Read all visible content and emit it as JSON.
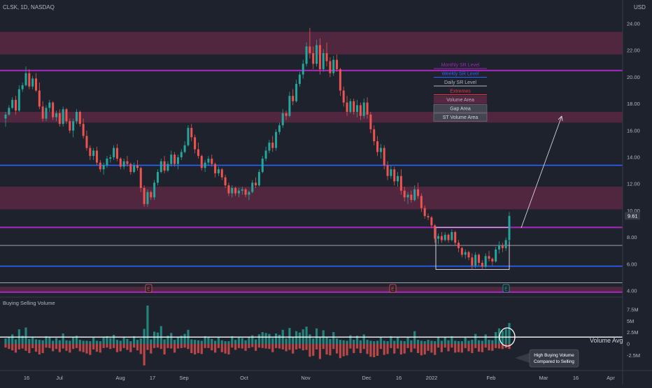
{
  "header": {
    "ticker_line": "CLSK, 1D, NASDAQ",
    "currency": "USD"
  },
  "price_pane": {
    "y_ticks": [
      "24.00",
      "22.00",
      "20.00",
      "18.00",
      "16.00",
      "14.00",
      "12.00",
      "10.00",
      "8.00",
      "6.00",
      "4.00"
    ],
    "last_price": "9.61"
  },
  "legend": {
    "items": [
      {
        "label": "Monthly SR Level",
        "color": "#9c27b0"
      },
      {
        "label": "Weekly SR Level",
        "color": "#2962ff"
      },
      {
        "label": "Daily SR Level",
        "color": "#b2b5be"
      },
      {
        "label": "Extremes",
        "color": "#f23645"
      },
      {
        "label": "Volume Area",
        "color": "#b2b5be"
      },
      {
        "label": "Gap Area",
        "color": "#d1d4dc"
      },
      {
        "label": "ST Volume Area",
        "color": "#d1d4dc"
      }
    ]
  },
  "earnings_markers": [
    "E",
    "E",
    "E"
  ],
  "volume_pane": {
    "title": "Buying Selling Volume",
    "y_ticks": [
      "7.5M",
      "5M",
      "2.5M",
      "0",
      "-2.5M"
    ],
    "avg_label": "Volume Avg",
    "callout": [
      "High Buying Volume",
      "Compared to Selling"
    ]
  },
  "x_axis": {
    "labels": [
      "16",
      "Jul",
      "Aug",
      "17",
      "Sep",
      "Oct",
      "Nov",
      "Dec",
      "16",
      "2022",
      "Feb",
      "Mar",
      "16",
      "Apr"
    ]
  },
  "colors": {
    "background": "#1e222d",
    "up": "#26a69a",
    "down": "#ef5350",
    "monthly": "#9c27b0",
    "weekly": "#2962ff",
    "daily": "#b2b5be",
    "zone": "#7b2c4f"
  },
  "chart_data": {
    "type": "candlestick",
    "symbol": "CLSK",
    "interval": "1D",
    "exchange": "NASDAQ",
    "y_range": [
      4,
      24.5
    ],
    "levels": {
      "monthly": [
        20.5,
        8.75,
        3.9
      ],
      "weekly": [
        13.4,
        5.85
      ],
      "daily": [
        7.4,
        4.6
      ]
    },
    "zones": [
      [
        21.7,
        23.4
      ],
      [
        16.6,
        17.4
      ],
      [
        10.1,
        11.8
      ],
      [
        3.95,
        4.3
      ]
    ],
    "st_volume_box": {
      "price": [
        5.6,
        8.75
      ]
    },
    "volume_avg": 1.5,
    "vol_range": [
      -2.9,
      8.8
    ],
    "candles": [
      [
        16.9,
        17.4,
        16.3,
        17.2
      ],
      [
        17.2,
        17.9,
        17.1,
        17.7
      ],
      [
        17.7,
        18.5,
        17.6,
        18.3
      ],
      [
        18.3,
        18.6,
        17.2,
        17.5
      ],
      [
        17.5,
        19.4,
        17.4,
        19.1
      ],
      [
        19.1,
        19.6,
        18.9,
        19.4
      ],
      [
        19.4,
        20.8,
        19.3,
        20.3
      ],
      [
        20.3,
        20.6,
        19.1,
        19.3
      ],
      [
        19.3,
        20.1,
        19.1,
        19.9
      ],
      [
        19.9,
        20.3,
        18.9,
        19.0
      ],
      [
        19.0,
        19.6,
        17.6,
        17.8
      ],
      [
        17.8,
        18.2,
        16.7,
        16.9
      ],
      [
        16.9,
        17.9,
        16.7,
        17.7
      ],
      [
        17.7,
        18.3,
        17.4,
        18.1
      ],
      [
        18.1,
        18.2,
        16.8,
        17.0
      ],
      [
        17.0,
        17.5,
        16.7,
        17.3
      ],
      [
        17.3,
        17.6,
        16.3,
        16.5
      ],
      [
        16.5,
        17.8,
        16.3,
        17.6
      ],
      [
        17.6,
        17.7,
        16.5,
        16.7
      ],
      [
        16.7,
        16.9,
        15.8,
        16.0
      ],
      [
        16.0,
        16.9,
        15.5,
        16.7
      ],
      [
        16.7,
        17.6,
        16.5,
        17.4
      ],
      [
        17.4,
        17.5,
        16.3,
        16.5
      ],
      [
        16.5,
        16.9,
        15.4,
        15.6
      ],
      [
        15.6,
        16.0,
        14.5,
        14.7
      ],
      [
        14.7,
        14.9,
        13.8,
        14.1
      ],
      [
        14.1,
        14.7,
        13.8,
        14.5
      ],
      [
        14.5,
        14.8,
        13.4,
        13.6
      ],
      [
        13.6,
        13.8,
        12.9,
        13.1
      ],
      [
        13.1,
        13.6,
        12.7,
        13.4
      ],
      [
        13.4,
        14.1,
        13.2,
        13.9
      ],
      [
        13.9,
        14.2,
        13.6,
        14.0
      ],
      [
        14.0,
        14.9,
        13.8,
        14.7
      ],
      [
        14.7,
        15.0,
        13.7,
        13.9
      ],
      [
        13.9,
        14.0,
        13.1,
        13.3
      ],
      [
        13.3,
        13.9,
        13.1,
        13.7
      ],
      [
        13.7,
        14.1,
        13.3,
        13.5
      ],
      [
        13.5,
        13.6,
        12.7,
        12.9
      ],
      [
        12.9,
        13.6,
        12.8,
        13.4
      ],
      [
        13.4,
        13.8,
        13.0,
        13.2
      ],
      [
        13.2,
        13.3,
        11.4,
        11.7
      ],
      [
        11.7,
        11.9,
        10.3,
        10.5
      ],
      [
        10.5,
        11.6,
        10.3,
        11.4
      ],
      [
        11.4,
        11.5,
        10.8,
        11.0
      ],
      [
        11.0,
        12.3,
        10.8,
        12.1
      ],
      [
        12.1,
        13.1,
        11.9,
        12.9
      ],
      [
        12.9,
        13.9,
        12.8,
        13.7
      ],
      [
        13.7,
        14.1,
        12.8,
        13.0
      ],
      [
        13.0,
        13.7,
        12.9,
        13.5
      ],
      [
        13.5,
        14.5,
        13.3,
        14.2
      ],
      [
        14.2,
        14.4,
        13.3,
        13.5
      ],
      [
        13.5,
        14.2,
        13.1,
        14.0
      ],
      [
        14.0,
        14.6,
        13.8,
        14.4
      ],
      [
        14.4,
        15.2,
        14.3,
        14.9
      ],
      [
        14.9,
        16.4,
        14.8,
        16.2
      ],
      [
        16.2,
        16.5,
        15.2,
        15.5
      ],
      [
        15.5,
        15.7,
        14.3,
        14.6
      ],
      [
        14.6,
        15.1,
        13.9,
        14.1
      ],
      [
        14.1,
        14.2,
        13.0,
        13.2
      ],
      [
        13.2,
        13.8,
        12.9,
        13.6
      ],
      [
        13.6,
        14.1,
        13.4,
        13.9
      ],
      [
        13.9,
        14.2,
        13.3,
        13.5
      ],
      [
        13.5,
        13.6,
        12.5,
        12.8
      ],
      [
        12.8,
        13.3,
        12.6,
        13.1
      ],
      [
        13.1,
        13.2,
        12.3,
        12.5
      ],
      [
        12.5,
        12.7,
        11.7,
        11.9
      ],
      [
        11.9,
        12.1,
        11.1,
        11.3
      ],
      [
        11.3,
        11.9,
        11.0,
        11.7
      ],
      [
        11.7,
        11.8,
        11.1,
        11.3
      ],
      [
        11.3,
        11.7,
        11.0,
        11.5
      ],
      [
        11.5,
        11.8,
        11.2,
        11.6
      ],
      [
        11.6,
        11.7,
        11.0,
        11.2
      ],
      [
        11.2,
        11.5,
        10.8,
        11.4
      ],
      [
        11.4,
        12.3,
        11.3,
        12.1
      ],
      [
        12.1,
        12.5,
        11.7,
        11.9
      ],
      [
        11.9,
        13.1,
        11.8,
        12.9
      ],
      [
        12.9,
        14.1,
        12.8,
        13.9
      ],
      [
        13.9,
        14.8,
        13.7,
        14.5
      ],
      [
        14.5,
        15.3,
        14.3,
        15.1
      ],
      [
        15.1,
        15.6,
        14.4,
        14.7
      ],
      [
        14.7,
        16.1,
        14.5,
        15.9
      ],
      [
        15.9,
        16.6,
        15.7,
        16.4
      ],
      [
        16.4,
        17.6,
        16.2,
        17.3
      ],
      [
        17.3,
        17.5,
        16.8,
        17.1
      ],
      [
        17.1,
        18.9,
        17.0,
        18.6
      ],
      [
        18.6,
        19.1,
        17.9,
        18.2
      ],
      [
        18.2,
        19.8,
        18.1,
        19.5
      ],
      [
        19.5,
        20.4,
        19.3,
        20.2
      ],
      [
        20.2,
        21.3,
        19.9,
        21.0
      ],
      [
        21.0,
        22.6,
        20.8,
        22.3
      ],
      [
        22.3,
        23.7,
        21.4,
        21.8
      ],
      [
        21.8,
        22.3,
        20.6,
        21.0
      ],
      [
        21.0,
        22.8,
        20.8,
        22.4
      ],
      [
        22.4,
        22.9,
        20.2,
        20.6
      ],
      [
        20.6,
        22.1,
        20.4,
        21.8
      ],
      [
        21.8,
        22.6,
        20.8,
        21.2
      ],
      [
        21.2,
        21.5,
        20.0,
        20.3
      ],
      [
        20.3,
        21.6,
        20.1,
        21.3
      ],
      [
        21.3,
        21.7,
        20.4,
        20.6
      ],
      [
        20.6,
        20.7,
        18.6,
        19.0
      ],
      [
        19.0,
        19.3,
        17.8,
        18.1
      ],
      [
        18.1,
        18.6,
        17.1,
        17.4
      ],
      [
        17.4,
        18.4,
        17.3,
        18.2
      ],
      [
        18.2,
        18.4,
        17.2,
        17.4
      ],
      [
        17.4,
        18.3,
        17.0,
        17.9
      ],
      [
        17.9,
        18.1,
        16.8,
        17.1
      ],
      [
        17.1,
        18.4,
        16.9,
        18.1
      ],
      [
        18.1,
        18.5,
        16.9,
        17.2
      ],
      [
        17.2,
        17.4,
        15.8,
        16.1
      ],
      [
        16.1,
        16.4,
        14.9,
        15.2
      ],
      [
        15.2,
        15.6,
        14.1,
        14.4
      ],
      [
        14.4,
        15.0,
        13.9,
        14.7
      ],
      [
        14.7,
        14.9,
        13.1,
        13.4
      ],
      [
        13.4,
        13.7,
        12.3,
        12.6
      ],
      [
        12.6,
        13.4,
        12.4,
        13.1
      ],
      [
        13.1,
        13.3,
        11.9,
        12.2
      ],
      [
        12.2,
        12.9,
        11.8,
        12.6
      ],
      [
        12.6,
        13.1,
        11.2,
        11.5
      ],
      [
        11.5,
        11.8,
        10.7,
        11.0
      ],
      [
        11.0,
        11.4,
        10.5,
        11.2
      ],
      [
        11.2,
        11.5,
        10.6,
        10.8
      ],
      [
        10.8,
        11.9,
        10.7,
        11.6
      ],
      [
        11.6,
        12.1,
        10.9,
        11.1
      ],
      [
        11.1,
        11.3,
        9.9,
        10.2
      ],
      [
        10.2,
        10.4,
        9.4,
        9.6
      ],
      [
        9.6,
        9.8,
        9.3,
        9.5
      ],
      [
        9.5,
        9.6,
        8.7,
        8.9
      ],
      [
        8.9,
        9.0,
        7.6,
        7.9
      ],
      [
        7.9,
        8.3,
        7.5,
        8.1
      ],
      [
        8.1,
        8.4,
        7.6,
        7.8
      ],
      [
        7.8,
        8.4,
        7.7,
        8.2
      ],
      [
        8.2,
        8.3,
        7.6,
        7.8
      ],
      [
        7.8,
        8.6,
        7.7,
        8.4
      ],
      [
        8.4,
        8.5,
        7.4,
        7.6
      ],
      [
        7.6,
        7.8,
        6.9,
        7.2
      ],
      [
        7.2,
        7.3,
        6.5,
        6.7
      ],
      [
        6.7,
        7.1,
        6.4,
        6.9
      ],
      [
        6.9,
        7.0,
        6.3,
        6.5
      ],
      [
        6.5,
        6.8,
        5.6,
        5.9
      ],
      [
        5.9,
        6.9,
        5.7,
        6.7
      ],
      [
        6.7,
        6.8,
        5.9,
        6.1
      ],
      [
        6.1,
        6.3,
        5.6,
        5.8
      ],
      [
        5.8,
        6.8,
        5.7,
        6.6
      ],
      [
        6.6,
        7.0,
        6.2,
        6.4
      ],
      [
        6.4,
        6.5,
        5.9,
        6.2
      ],
      [
        6.2,
        7.3,
        6.1,
        7.1
      ],
      [
        7.1,
        7.7,
        6.8,
        7.4
      ],
      [
        7.4,
        7.6,
        6.9,
        7.2
      ],
      [
        7.2,
        8.0,
        7.0,
        7.8
      ],
      [
        7.8,
        9.9,
        7.7,
        9.61
      ]
    ],
    "volumes": [
      [
        1.2,
        -0.8
      ],
      [
        1.6,
        -1.1
      ],
      [
        2.1,
        -1.4
      ],
      [
        1.0,
        -1.9
      ],
      [
        3.2,
        -1.2
      ],
      [
        1.8,
        -1.0
      ],
      [
        3.6,
        -1.5
      ],
      [
        1.1,
        -2.0
      ],
      [
        1.5,
        -0.9
      ],
      [
        1.0,
        -1.7
      ],
      [
        0.9,
        -2.3
      ],
      [
        0.8,
        -2.0
      ],
      [
        1.7,
        -0.8
      ],
      [
        1.5,
        -0.9
      ],
      [
        0.7,
        -1.6
      ],
      [
        1.3,
        -1.1
      ],
      [
        0.8,
        -1.8
      ],
      [
        2.3,
        -1.0
      ],
      [
        0.8,
        -1.5
      ],
      [
        0.7,
        -1.9
      ],
      [
        1.6,
        -1.1
      ],
      [
        1.8,
        -0.9
      ],
      [
        0.9,
        -1.6
      ],
      [
        0.7,
        -1.8
      ],
      [
        0.7,
        -2.1
      ],
      [
        0.6,
        -2.4
      ],
      [
        1.4,
        -1.2
      ],
      [
        0.7,
        -1.7
      ],
      [
        0.6,
        -1.9
      ],
      [
        1.5,
        -0.9
      ],
      [
        1.7,
        -0.8
      ],
      [
        1.3,
        -1.1
      ],
      [
        2.0,
        -0.9
      ],
      [
        0.9,
        -1.8
      ],
      [
        0.7,
        -1.6
      ],
      [
        1.6,
        -0.9
      ],
      [
        1.1,
        -1.3
      ],
      [
        0.6,
        -1.8
      ],
      [
        1.7,
        -0.8
      ],
      [
        0.9,
        -1.4
      ],
      [
        1.2,
        -2.2
      ],
      [
        3.3,
        -4.7
      ],
      [
        8.4,
        -1.3
      ],
      [
        1.0,
        -2.1
      ],
      [
        2.7,
        -0.9
      ],
      [
        2.5,
        -0.8
      ],
      [
        3.9,
        -1.1
      ],
      [
        1.0,
        -2.3
      ],
      [
        1.8,
        -0.9
      ],
      [
        2.4,
        -1.0
      ],
      [
        0.9,
        -1.9
      ],
      [
        1.6,
        -1.0
      ],
      [
        1.8,
        -0.9
      ],
      [
        2.2,
        -0.8
      ],
      [
        3.1,
        -1.1
      ],
      [
        1.0,
        -2.0
      ],
      [
        0.9,
        -2.3
      ],
      [
        0.8,
        -2.0
      ],
      [
        0.7,
        -2.2
      ],
      [
        1.7,
        -0.9
      ],
      [
        1.6,
        -0.9
      ],
      [
        1.1,
        -1.4
      ],
      [
        0.7,
        -1.9
      ],
      [
        1.5,
        -0.9
      ],
      [
        0.8,
        -1.8
      ],
      [
        0.6,
        -2.1
      ],
      [
        0.6,
        -2.3
      ],
      [
        1.7,
        -0.8
      ],
      [
        0.9,
        -1.3
      ],
      [
        1.4,
        -0.9
      ],
      [
        1.3,
        -1.0
      ],
      [
        0.8,
        -1.5
      ],
      [
        1.5,
        -0.9
      ],
      [
        1.9,
        -0.7
      ],
      [
        1.0,
        -1.5
      ],
      [
        2.1,
        -0.8
      ],
      [
        2.6,
        -0.9
      ],
      [
        2.4,
        -1.0
      ],
      [
        2.2,
        -1.1
      ],
      [
        1.3,
        -1.8
      ],
      [
        2.3,
        -0.9
      ],
      [
        2.0,
        -1.0
      ],
      [
        3.1,
        -1.2
      ],
      [
        1.2,
        -1.6
      ],
      [
        3.5,
        -1.3
      ],
      [
        1.4,
        -2.1
      ],
      [
        2.8,
        -1.2
      ],
      [
        2.5,
        -1.0
      ],
      [
        3.2,
        -1.4
      ],
      [
        3.8,
        -1.3
      ],
      [
        2.1,
        -2.8
      ],
      [
        1.2,
        -2.6
      ],
      [
        3.4,
        -1.2
      ],
      [
        1.4,
        -3.3
      ],
      [
        3.0,
        -1.1
      ],
      [
        1.5,
        -2.3
      ],
      [
        1.1,
        -2.5
      ],
      [
        2.6,
        -1.1
      ],
      [
        1.2,
        -2.1
      ],
      [
        0.9,
        -3.1
      ],
      [
        0.8,
        -2.7
      ],
      [
        0.7,
        -2.5
      ],
      [
        1.9,
        -1.0
      ],
      [
        0.9,
        -2.0
      ],
      [
        1.8,
        -1.0
      ],
      [
        0.8,
        -2.0
      ],
      [
        2.1,
        -1.1
      ],
      [
        0.9,
        -2.2
      ],
      [
        0.7,
        -2.8
      ],
      [
        0.6,
        -2.9
      ],
      [
        0.7,
        -2.6
      ],
      [
        1.6,
        -1.1
      ],
      [
        0.7,
        -2.4
      ],
      [
        0.6,
        -2.2
      ],
      [
        1.7,
        -0.9
      ],
      [
        0.7,
        -2.1
      ],
      [
        1.6,
        -1.0
      ],
      [
        0.7,
        -2.3
      ],
      [
        0.6,
        -2.1
      ],
      [
        1.5,
        -0.9
      ],
      [
        0.8,
        -1.8
      ],
      [
        2.8,
        -1.0
      ],
      [
        0.9,
        -2.0
      ],
      [
        0.7,
        -2.5
      ],
      [
        0.6,
        -2.3
      ],
      [
        0.9,
        -1.5
      ],
      [
        0.7,
        -1.9
      ],
      [
        0.6,
        -2.4
      ],
      [
        1.5,
        -0.8
      ],
      [
        0.7,
        -1.8
      ],
      [
        1.6,
        -0.8
      ],
      [
        0.8,
        -1.6
      ],
      [
        1.7,
        -0.8
      ],
      [
        0.7,
        -1.9
      ],
      [
        0.6,
        -1.8
      ],
      [
        0.6,
        -1.9
      ],
      [
        1.4,
        -0.9
      ],
      [
        0.7,
        -1.6
      ],
      [
        0.9,
        -2.0
      ],
      [
        2.2,
        -0.9
      ],
      [
        0.8,
        -1.7
      ],
      [
        0.7,
        -1.8
      ],
      [
        2.1,
        -0.8
      ],
      [
        0.9,
        -1.4
      ],
      [
        0.8,
        -1.5
      ],
      [
        2.6,
        -0.9
      ],
      [
        3.4,
        -1.0
      ],
      [
        2.9,
        -1.1
      ],
      [
        3.3,
        -0.9
      ],
      [
        4.6,
        -1.1
      ]
    ]
  }
}
